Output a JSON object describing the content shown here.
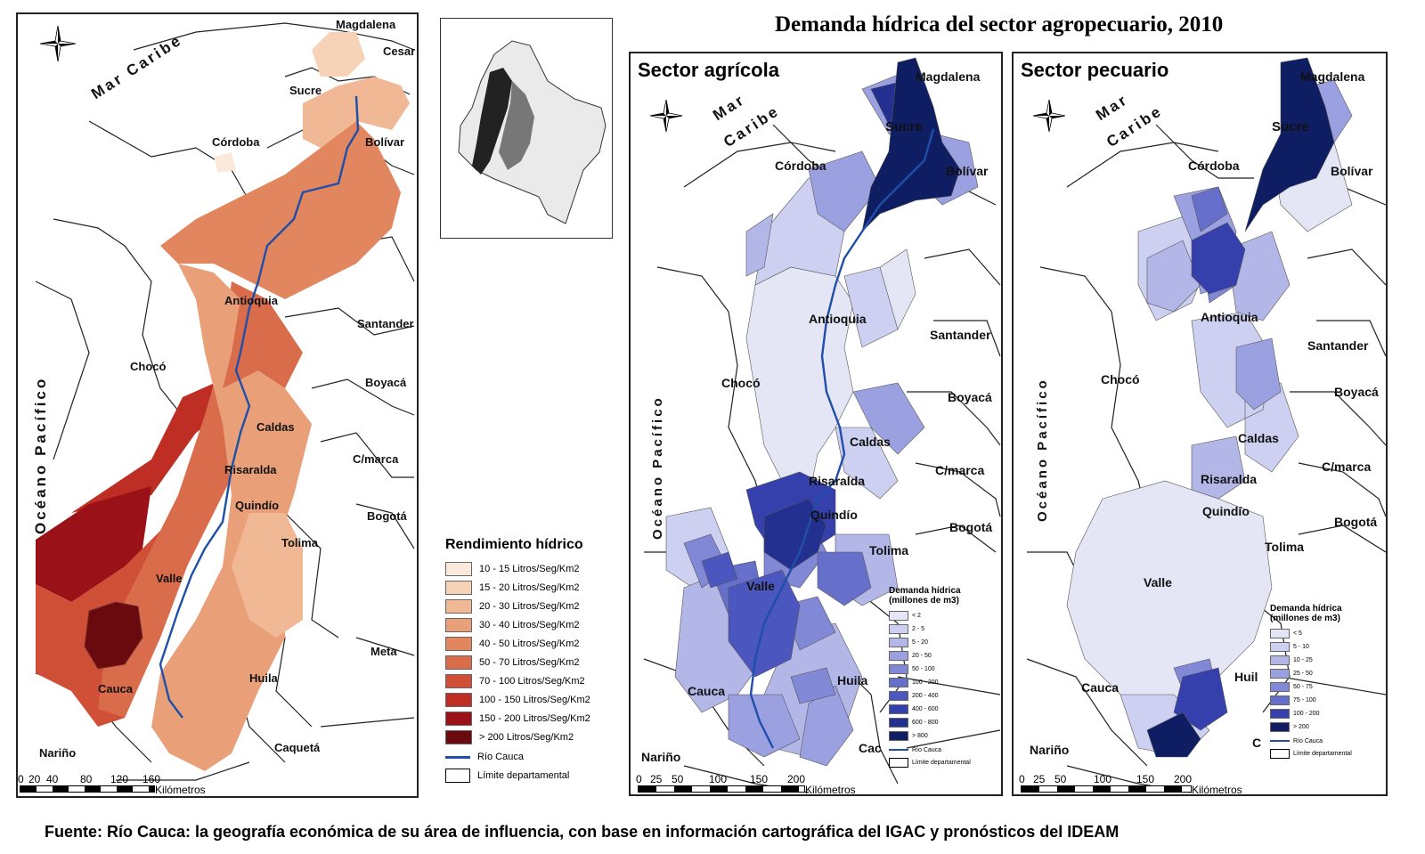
{
  "main_title": "Demanda hídrica del sector agropecuario, 2010",
  "source": "Fuente: Río Cauca: la geografía económica de su área de influencia, con base en información cartográfica del IGAC y pronósticos del IDEAM",
  "colors": {
    "river": "#1f4fa8",
    "reds": [
      "#fbeadb",
      "#f6d2b6",
      "#f0b894",
      "#e9a079",
      "#e2865f",
      "#d96c4a",
      "#cf4f37",
      "#be2e24",
      "#9a1217",
      "#6b0a0e"
    ],
    "blues": [
      "#e4e6f6",
      "#cdd0f0",
      "#b3b7e8",
      "#9ba1e0",
      "#8188d6",
      "#6670cb",
      "#4c56bf",
      "#3540ac",
      "#233090",
      "#0f1d63"
    ]
  },
  "map1": {
    "labels": {
      "mar_caribe": "Mar Caribe",
      "oceano": "Océano Pacífico",
      "magdalena": "Magdalena",
      "cesar": "Cesar",
      "sucre": "Sucre",
      "cordoba": "Córdoba",
      "bolivar": "Bolívar",
      "antioquia": "Antioquia",
      "santander": "Santander",
      "choco": "Chocó",
      "boyaca": "Boyacá",
      "caldas": "Caldas",
      "cmarca": "C/marca",
      "risaralda": "Risaralda",
      "quindio": "Quindío",
      "bogota": "Bogotá",
      "tolima": "Tolima",
      "valle": "Valle",
      "meta": "Meta",
      "huila": "Huila",
      "cauca": "Cauca",
      "narino": "Nariño",
      "caqueta": "Caquetá"
    },
    "scale": {
      "ticks": [
        "0",
        "20",
        "40",
        "80",
        "120",
        "160"
      ],
      "unit": "Kilómetros"
    }
  },
  "legend1": {
    "title": "Rendimiento hídrico",
    "items": [
      "10 - 15 Litros/Seg/Km2",
      "15 - 20  Litros/Seg/Km2",
      "20 - 30 Litros/Seg/Km2",
      "30 - 40 Litros/Seg/Km2",
      "40 - 50 Litros/Seg/Km2",
      "50 - 70 Litros/Seg/Km2",
      "70 - 100 Litros/Seg/Km2",
      "100 - 150 Litros/Seg/Km2",
      "150 - 200 Litros/Seg/Km2",
      "> 200 Litros/Seg/Km2"
    ],
    "river": "Río Cauca",
    "limit": "Límite departamental"
  },
  "map2": {
    "title": "Sector agrícola",
    "labels": {
      "magdalena": "Magdalena",
      "mar": "Mar",
      "caribe": "Caribe",
      "sucre": "Sucre",
      "cordoba": "Córdoba",
      "bolivar": "Bolívar",
      "antioquia": "Antioquia",
      "santander": "Santander",
      "choco": "Chocó",
      "boyaca": "Boyacá",
      "caldas": "Caldas",
      "oceano": "Océano Pacífico",
      "risaralda": "Risaralda",
      "cmarca": "C/marca",
      "quindio": "Quindío",
      "bogota": "Bogotá",
      "tolima": "Tolima",
      "valle": "Valle",
      "huila": "Huila",
      "cauca": "Cauca",
      "narino": "Nariño",
      "cac": "Cac"
    },
    "scale": {
      "ticks": [
        "0",
        "25",
        "50",
        "100",
        "150",
        "200"
      ],
      "unit": "Kilómetros"
    }
  },
  "legend2": {
    "title1": "Demanda hídrica",
    "title2": "(millones de m3)",
    "items": [
      "< 2",
      "2 - 5",
      "5 - 20",
      "20 - 50",
      "50 - 100",
      "100 - 200",
      "200 - 400",
      "400 - 600",
      "600 - 800",
      "> 800"
    ],
    "river": "Río Cauca",
    "limit": "Límite departamental"
  },
  "map3": {
    "title": "Sector pecuario",
    "labels": {
      "magdalena": "Magdalena",
      "mar": "Mar",
      "caribe": "Caribe",
      "sucre": "Sucre",
      "cordoba": "Córdoba",
      "bolivar": "Bolívar",
      "antioquia": "Antioquia",
      "santander": "Santander",
      "choco": "Chocó",
      "boyaca": "Boyacá",
      "caldas": "Caldas",
      "oceano": "Océano Pacífico",
      "risaralda": "Risaralda",
      "cmarca": "C/marca",
      "quindio": "Quindío",
      "bogota": "Bogotá",
      "tolima": "Tolima",
      "valle": "Valle",
      "huila": "Huil",
      "cauca": "Cauca",
      "narino": "Nariño",
      "c": "C"
    },
    "scale": {
      "ticks": [
        "0",
        "25",
        "50",
        "100",
        "150",
        "200"
      ],
      "unit": "Kilómetros"
    }
  },
  "legend3": {
    "title1": "Demanda hídrica",
    "title2": "(millones de m3)",
    "items": [
      "< 5",
      "5 - 10",
      "10 - 25",
      "25 - 50",
      "50 - 75",
      "75 - 100",
      "100 - 200",
      "> 200"
    ],
    "river": "Río Cauca",
    "limit": "Límite departamental"
  }
}
